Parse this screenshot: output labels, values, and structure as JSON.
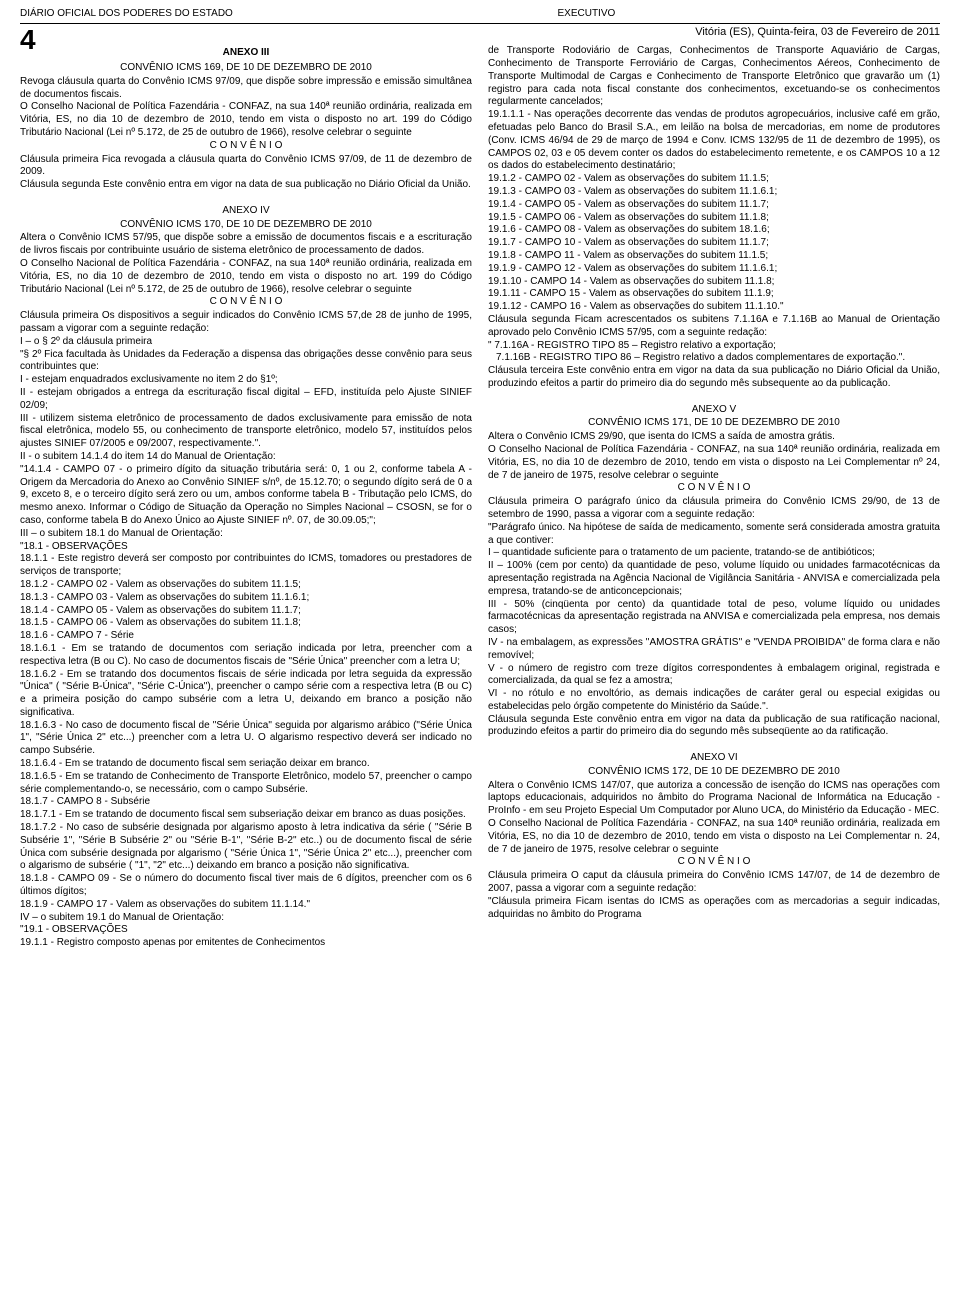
{
  "header": {
    "left": "DIÁRIO OFICIAL DOS PODERES DO ESTADO",
    "center": "EXECUTIVO",
    "date": "Vitória (ES), Quinta-feira, 03 de Fevereiro de 2011",
    "page_number": "4"
  },
  "left_column": {
    "anexo3_title": "ANEXO III",
    "anexo3_sub": "CONVÊNIO ICMS 169, DE 10 DE DEZEMBRO DE 2010",
    "p1": "Revoga cláusula quarta do Convênio ICMS 97/09, que dispõe sobre impressão e emissão simultânea de documentos fiscais.",
    "p2": "O Conselho Nacional de Política Fazendária - CONFAZ, na sua 140ª reunião ordinária, realizada em Vitória, ES, no dia 10 de dezembro de 2010, tendo em vista o disposto no art. 199 do Código Tributário Nacional (Lei nº 5.172, de 25 de outubro de 1966), resolve celebrar o seguinte",
    "convenio1": "C O N V Ê N I O",
    "p3": "Cláusula primeira Fica revogada a cláusula quarta do Convênio ICMS 97/09, de 11 de dezembro de 2009.",
    "p4": "Cláusula segunda Este convênio entra em vigor na data de sua publicação no Diário Oficial da União.",
    "anexo4_title": "ANEXO IV",
    "anexo4_sub": "CONVÊNIO ICMS 170, DE 10 DE DEZEMBRO DE 2010",
    "p5": "Altera o Convênio ICMS 57/95, que dispõe sobre a emissão de documentos fiscais e a escrituração de livros fiscais por contribuinte usuário de sistema eletrônico de processamento de dados.",
    "p6": "O Conselho Nacional de Política Fazendária - CONFAZ, na sua 140ª reunião ordinária, realizada em Vitória, ES, no dia 10 de dezembro de 2010, tendo em vista o disposto no art. 199 do Código Tributário Nacional (Lei nº 5.172, de 25 de outubro de 1966), resolve celebrar o seguinte",
    "convenio2": "C O N V Ê N I O",
    "p7": "Cláusula primeira Os dispositivos a seguir indicados do Convênio ICMS 57,de 28 de junho de 1995, passam a vigorar com a seguinte redação:",
    "p8": "I – o § 2º da cláusula primeira",
    "p9": "\"§ 2º Fica facultada às Unidades da Federação a dispensa das obrigações desse convênio para seus contribuintes que:",
    "p10": "I - estejam enquadrados exclusivamente no item 2 do §1º;",
    "p11": "II - estejam obrigados a entrega da escrituração fiscal digital – EFD, instituída pelo Ajuste SINIEF 02/09;",
    "p12": "III - utilizem sistema eletrônico de processamento de dados exclusivamente para emissão de nota fiscal eletrônica, modelo 55, ou conhecimento de transporte eletrônico, modelo 57, instituídos pelos ajustes SINIEF 07/2005 e 09/2007, respectivamente.\".",
    "p13": "II - o subitem 14.1.4 do item 14 do Manual de Orientação:",
    "p14": "\"14.1.4 - CAMPO 07 - o primeiro dígito da situação tributária será: 0, 1 ou 2, conforme tabela A - Origem da Mercadoria do Anexo ao Convênio SINIEF s/nº, de 15.12.70; o segundo dígito será de 0 a 9, exceto 8, e o terceiro dígito será zero ou um, ambos conforme tabela B - Tributação pelo ICMS, do mesmo anexo. Informar o Código de Situação da Operação no Simples Nacional – CSOSN, se for o caso, conforme tabela B do Anexo Único ao Ajuste SINIEF nº. 07, de 30.09.05;\";",
    "p15": "III – o subitem 18.1 do Manual de Orientação:",
    "p16": "\"18.1 - OBSERVAÇÕES",
    "p17": "18.1.1 - Este registro deverá ser composto por contribuintes do ICMS, tomadores ou prestadores de serviços de transporte;",
    "p18": "18.1.2 - CAMPO 02 - Valem as observações do subitem 11.1.5;",
    "p19": "18.1.3 - CAMPO 03 - Valem as observações do subitem 11.1.6.1;",
    "p20": "18.1.4 - CAMPO 05 - Valem as observações do subitem 11.1.7;",
    "p21": "18.1.5 - CAMPO 06 - Valem as observações do subitem 11.1.8;",
    "p22": "18.1.6 - CAMPO 7 - Série",
    "p23": "18.1.6.1 - Em se tratando de documentos com seriação indicada por letra, preencher com a respectiva letra (B ou C). No caso de documentos fiscais de \"Série Única\" preencher com a letra U;",
    "p24": "18.1.6.2 - Em se tratando dos documentos fiscais de série indicada por letra seguida da expressão \"Única\" ( \"Série B-Única\", \"Série C-Única\"), preencher o campo série com a respectiva letra (B ou C) e a primeira posição do campo subsérie com a letra U, deixando em branco a posição não significativa.",
    "p25": "18.1.6.3 - No caso de documento fiscal de \"Série Única\" seguida por algarismo arábico (\"Série Única 1\", \"Série Única 2\" etc...) preencher com a letra U. O algarismo respectivo deverá ser indicado no campo Subsérie.",
    "p26": "18.1.6.4 - Em se tratando de documento fiscal sem seriação deixar em branco.",
    "p27": "18.1.6.5 - Em se tratando de Conhecimento de Transporte Eletrônico, modelo 57, preencher o campo série complementando-o, se necessário, com o campo Subsérie.",
    "p28": "18.1.7 - CAMPO 8 - Subsérie",
    "p29": "18.1.7.1 - Em se tratando de documento fiscal sem subseriação deixar em branco as duas posições.",
    "p30": "18.1.7.2 - No caso de subsérie designada por algarismo aposto à letra indicativa da série ( \"Série B Subsérie 1\", \"Série B Subsérie 2\" ou \"Série B-1\", \"Série B-2\" etc..) ou de documento fiscal de série Única com subsérie designada por algarismo ( \"Série Única 1\", \"Série Única 2\" etc...), preencher com o algarismo de subsérie ( \"1\", \"2\" etc...) deixando em branco a posição não significativa.",
    "p31": "18.1.8 - CAMPO 09 - Se o número do documento fiscal tiver mais de 6 dígitos, preencher com os 6 últimos dígitos;",
    "p32": "18.1.9 - CAMPO 17 - Valem as observações do subitem 11.1.14.\"",
    "p33": "IV – o subitem 19.1 do Manual de Orientação:",
    "p34": "\"19.1 - OBSERVAÇÕES",
    "p35": "19.1.1 - Registro composto apenas por emitentes de Conhecimentos"
  },
  "right_column": {
    "p1": "de Transporte Rodoviário de Cargas, Conhecimentos de Transporte Aquaviário de Cargas, Conhecimento de Transporte Ferroviário de Cargas, Conhecimentos Aéreos, Conhecimento de Transporte Multimodal de Cargas e Conhecimento de Transporte Eletrônico que gravarão um (1) registro para cada nota fiscal constante dos conhecimentos, excetuando-se os conhecimentos regularmente cancelados;",
    "p2": "19.1.1.1 - Nas operações decorrente das vendas de produtos agropecuários, inclusive café em grão, efetuadas pelo Banco do Brasil S.A., em leilão na bolsa de mercadorias, em nome de produtores (Conv. ICMS 46/94 de 29 de março de 1994 e Conv. ICMS 132/95 de 11 de dezembro de 1995), os CAMPOS 02, 03 e 05 devem conter os dados do estabelecimento remetente, e os CAMPOS 10 a 12 os dados do estabelecimento destinatário;",
    "p3": "19.1.2 - CAMPO 02 - Valem as observações do subitem 11.1.5;",
    "p4": "19.1.3 - CAMPO 03 - Valem as observações do subitem 11.1.6.1;",
    "p5": "19.1.4 - CAMPO 05 - Valem as observações do subitem 11.1.7;",
    "p6": "19.1.5 - CAMPO 06 - Valem as observações do subitem 11.1.8;",
    "p7": "19.1.6 - CAMPO 08 - Valem as observações do subitem 18.1.6;",
    "p8": "19.1.7 - CAMPO 10 - Valem as observações do subitem 11.1.7;",
    "p9": "19.1.8 - CAMPO 11 - Valem as observações do subitem 11.1.5;",
    "p10": "19.1.9 - CAMPO 12 - Valem as observações do subitem 11.1.6.1;",
    "p11": "19.1.10 - CAMPO 14 - Valem as observações do subitem 11.1.8;",
    "p12": "19.1.11 - CAMPO 15 - Valem as observações do subitem 11.1.9;",
    "p13": "19.1.12 - CAMPO 16 - Valem as observações do subitem 11.1.10.\"",
    "p14": "Cláusula segunda Ficam acrescentados os subitens 7.1.16A e 7.1.16B ao Manual de Orientação aprovado pelo Convênio ICMS 57/95, com a seguinte redação:",
    "p15": "\" 7.1.16A - REGISTRO TIPO 85 – Registro relativo a exportação;",
    "p16": "7.1.16B - REGISTRO TIPO 86 – Registro relativo a dados complementares de exportação.\".",
    "p17": "Cláusula terceira Este convênio entra em vigor na data da sua publicação no Diário Oficial da União, produzindo efeitos a partir do primeiro dia do segundo mês subsequente ao da publicação.",
    "anexo5_title": "ANEXO V",
    "anexo5_sub": "CONVÊNIO ICMS 171, DE 10 DE DEZEMBRO DE 2010",
    "p18": "Altera o Convênio ICMS 29/90, que isenta do ICMS a saída de amostra grátis.",
    "p19": "O Conselho Nacional de Política Fazendária - CONFAZ, na sua 140ª reunião ordinária, realizada em Vitória, ES, no dia 10 de dezembro de 2010, tendo em vista o disposto na Lei Complementar nº 24, de 7 de janeiro de 1975, resolve celebrar o seguinte",
    "convenio1": "C O N V Ê N I O",
    "p20": "Cláusula primeira O parágrafo único da cláusula primeira do Convênio ICMS 29/90, de 13 de setembro de 1990, passa a vigorar com a seguinte redação:",
    "p21": "\"Parágrafo único. Na hipótese de saída de medicamento, somente será considerada amostra gratuita a que contiver:",
    "p22": "I – quantidade suficiente para o tratamento de um paciente, tratando-se de antibióticos;",
    "p23": "II – 100% (cem por cento) da quantidade de peso, volume líquido ou unidades farmacotécnicas da apresentação registrada na Agência Nacional de Vigilância Sanitária - ANVISA e comercializada pela empresa, tratando-se de anticoncepcionais;",
    "p24": "III - 50% (cinqüenta por cento) da quantidade total de peso, volume líquido ou unidades farmacotécnicas da apresentação registrada na ANVISA e comercializada pela empresa, nos demais casos;",
    "p25": "IV - na embalagem, as expressões ''AMOSTRA GRÁTIS'' e \"VENDA PROIBIDA\" de forma clara e não removível;",
    "p26": "V - o número de registro com treze dígitos correspondentes à embalagem original, registrada e comercializada, da qual se fez a amostra;",
    "p27": "VI - no rótulo e no envoltório, as demais indicações de caráter geral ou especial exigidas ou estabelecidas pelo órgão competente do Ministério da Saúde.\".",
    "p28": "Cláusula segunda Este convênio entra em vigor na data da publicação de sua ratificação nacional, produzindo efeitos a partir do primeiro dia do segundo mês subseqüente ao da ratificação.",
    "anexo6_title": "ANEXO VI",
    "anexo6_sub": "CONVÊNIO ICMS 172, DE 10 DE DEZEMBRO DE 2010",
    "p29": "Altera o Convênio ICMS 147/07, que autoriza a concessão de isenção do ICMS nas operações com laptops educacionais, adquiridos no âmbito do Programa Nacional de Informática na Educação - ProInfo - em seu Projeto Especial Um Computador por Aluno UCA, do Ministério da Educação - MEC.",
    "p30": "O Conselho Nacional de Política Fazendária - CONFAZ, na sua 140ª reunião ordinária, realizada em Vitória, ES, no dia 10 de dezembro de 2010, tendo em vista o disposto na Lei Complementar n. 24, de 7 de janeiro de 1975, resolve celebrar o seguinte",
    "convenio2": "C O N V Ê N I O",
    "p31": "Cláusula primeira O caput da cláusula primeira do Convênio ICMS 147/07, de 14 de dezembro de 2007, passa a vigorar com a seguinte redação:",
    "p32": "\"Cláusula primeira Ficam isentas do ICMS as operações com as mercadorias a seguir indicadas, adquiridas no âmbito do Programa"
  }
}
